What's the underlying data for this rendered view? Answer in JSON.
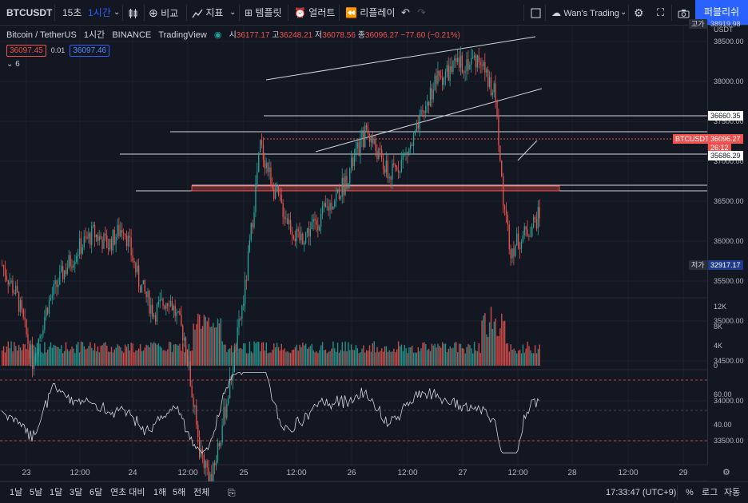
{
  "toolbar": {
    "symbol": "BTCUSDT",
    "interval_15s": "15초",
    "interval_1h": "1시간",
    "compare": "비교",
    "indicators": "지표",
    "templates": "템플릿",
    "alerts": "얼러트",
    "replay": "리플레이",
    "layout_name": "Wan's Trading",
    "publish": "퍼블리쉬"
  },
  "legend": {
    "pair": "Bitcoin / TetherUS",
    "interval": "1시간",
    "exchange": "BINANCE",
    "source": "TradingView",
    "open_label": "시",
    "open": "36177.17",
    "high_label": "고",
    "high": "36248.21",
    "low_label": "저",
    "low": "36078.56",
    "close_label": "종",
    "close": "36096.27",
    "change": "−77.60 (−0.21%)",
    "bid": "36097.45",
    "spread": "0.01",
    "ask": "36097.46",
    "collapsed_count": "6"
  },
  "price_axis": {
    "labels": [
      "38500.00",
      "38000.00",
      "37500.00",
      "37000.00",
      "36500.00",
      "36000.00",
      "35500.00",
      "35000.00",
      "34500.00",
      "34000.00",
      "33500.00"
    ],
    "partial_top": "38919.98",
    "partial_bottom": "32917.17",
    "high_label": "고가",
    "low_label": "저가",
    "high_value": "38919.98",
    "low_value": "32917.17",
    "currency": "USDT",
    "line_upper": "36660.35",
    "current_symbol": "BTCUSDT",
    "current_price": "36096.27",
    "countdown": "26:12",
    "line_lower": "35686.29"
  },
  "volume_axis": [
    "12K",
    "8K",
    "4K",
    "0"
  ],
  "rsi_axis": [
    "60.00",
    "40.00"
  ],
  "time_axis": [
    "23",
    "12:00",
    "24",
    "12:00",
    "25",
    "12:00",
    "26",
    "12:00",
    "27",
    "12:00",
    "28",
    "12:00",
    "29"
  ],
  "bottom": {
    "ranges": [
      "1날",
      "5날",
      "1달",
      "3달",
      "6달",
      "연초 대비",
      "1해",
      "5해",
      "전체"
    ],
    "time": "17:33:47 (UTC+9)",
    "percent": "%",
    "log": "로그",
    "auto": "자동"
  },
  "colors": {
    "up": "#26a69a",
    "down": "#ef5350",
    "background": "#131722",
    "accent": "#2962ff"
  },
  "chart_data": {
    "type": "candlestick",
    "symbol": "BTCUSDT",
    "interval": "1h",
    "series": [
      {
        "name": "price",
        "ohlc_start": 35700,
        "start_date": "2022-01-22",
        "end_date": "2022-01-27"
      },
      {
        "name": "volume",
        "ylim": [
          0,
          13000
        ]
      },
      {
        "name": "rsi",
        "ylim": [
          20,
          80
        ]
      }
    ],
    "ylim": [
      32917.17,
      38919.98
    ],
    "grid": true
  }
}
